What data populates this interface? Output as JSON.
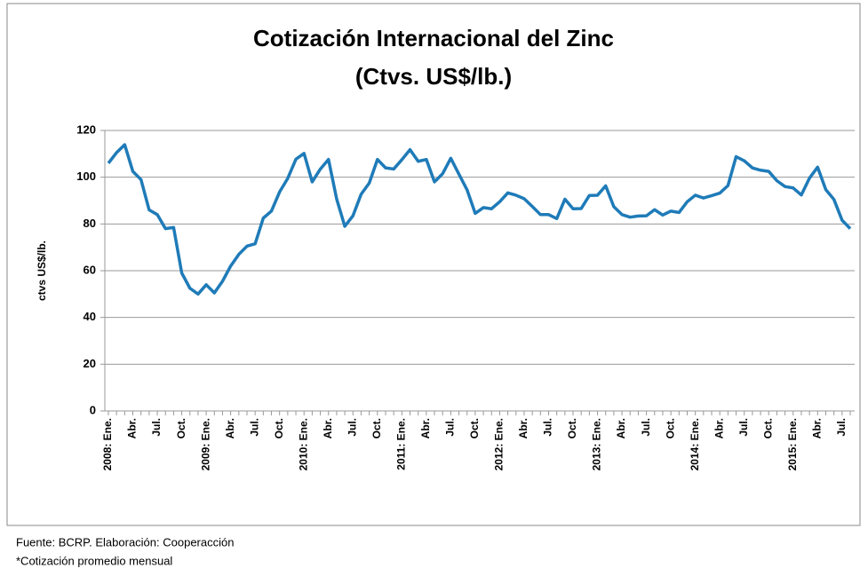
{
  "chart_data": {
    "type": "line",
    "title": "Cotización Internacional del Zinc",
    "subtitle": "(Ctvs. US$/lb.)",
    "y_label": "ctvs US$/lb.",
    "notes": [
      "Fuente: BCRP. Elaboración:  Cooperacción",
      "*Cotización promedio mensual"
    ],
    "categories": [
      "2008: Ene.",
      null,
      null,
      "Abr.",
      null,
      null,
      "Jul.",
      null,
      null,
      "Oct.",
      null,
      null,
      "2009: Ene.",
      null,
      null,
      "Abr.",
      null,
      null,
      "Jul.",
      null,
      null,
      "Oct.",
      null,
      null,
      "2010: Ene.",
      null,
      null,
      "Abr.",
      null,
      null,
      "Jul.",
      null,
      null,
      "Oct.",
      null,
      null,
      "2011: Ene.",
      null,
      null,
      "Abr.",
      null,
      null,
      "Jul.",
      null,
      null,
      "Oct.",
      null,
      null,
      "2012: Ene.",
      null,
      null,
      "Abr.",
      null,
      null,
      "Jul.",
      null,
      null,
      "Oct.",
      null,
      null,
      "2013: Ene.",
      null,
      null,
      "Abr.",
      null,
      null,
      "Jul.",
      null,
      null,
      "Oct.",
      null,
      null,
      "2014: Ene.",
      null,
      null,
      "Abr.",
      null,
      null,
      "Jul.",
      null,
      null,
      "Oct.",
      null,
      null,
      "2015: Ene.",
      null,
      null,
      "Abr.",
      null,
      null,
      "Jul.",
      null
    ],
    "series": [
      {
        "name": "Zinc",
        "color": "#1f7bb8",
        "values": [
          106,
          110.5,
          113.9,
          102.5,
          99,
          86,
          84,
          78,
          78.5,
          59,
          52.5,
          50,
          54,
          50.5,
          55.5,
          62,
          67,
          70.5,
          71.5,
          82.5,
          85.5,
          93.7,
          99.5,
          107.7,
          110.2,
          98,
          103.5,
          107.6,
          90.7,
          79,
          83.5,
          92.7,
          97.5,
          107.6,
          104,
          103.5,
          107.5,
          111.8,
          106.8,
          107.6,
          98,
          101.5,
          108.1,
          101.3,
          94.6,
          84.5,
          87,
          86.5,
          89.5,
          93.3,
          92.3,
          90.8,
          87.5,
          84,
          84,
          82.3,
          90.6,
          86.5,
          86.6,
          92.2,
          92.3,
          96.3,
          87.4,
          84,
          82.9,
          83.4,
          83.5,
          86.1,
          83.8,
          85.5,
          84.9,
          89.5,
          92.3,
          91.1,
          92.1,
          93.2,
          96.4,
          108.8,
          107,
          104,
          103,
          102.5,
          98.5,
          96,
          95.4,
          92.4,
          99.6,
          104.3,
          94.7,
          90.5,
          81.6,
          78
        ]
      }
    ],
    "ylim": [
      0,
      120
    ],
    "yticks": [
      0,
      20,
      40,
      60,
      80,
      100,
      120
    ],
    "grid": true
  }
}
